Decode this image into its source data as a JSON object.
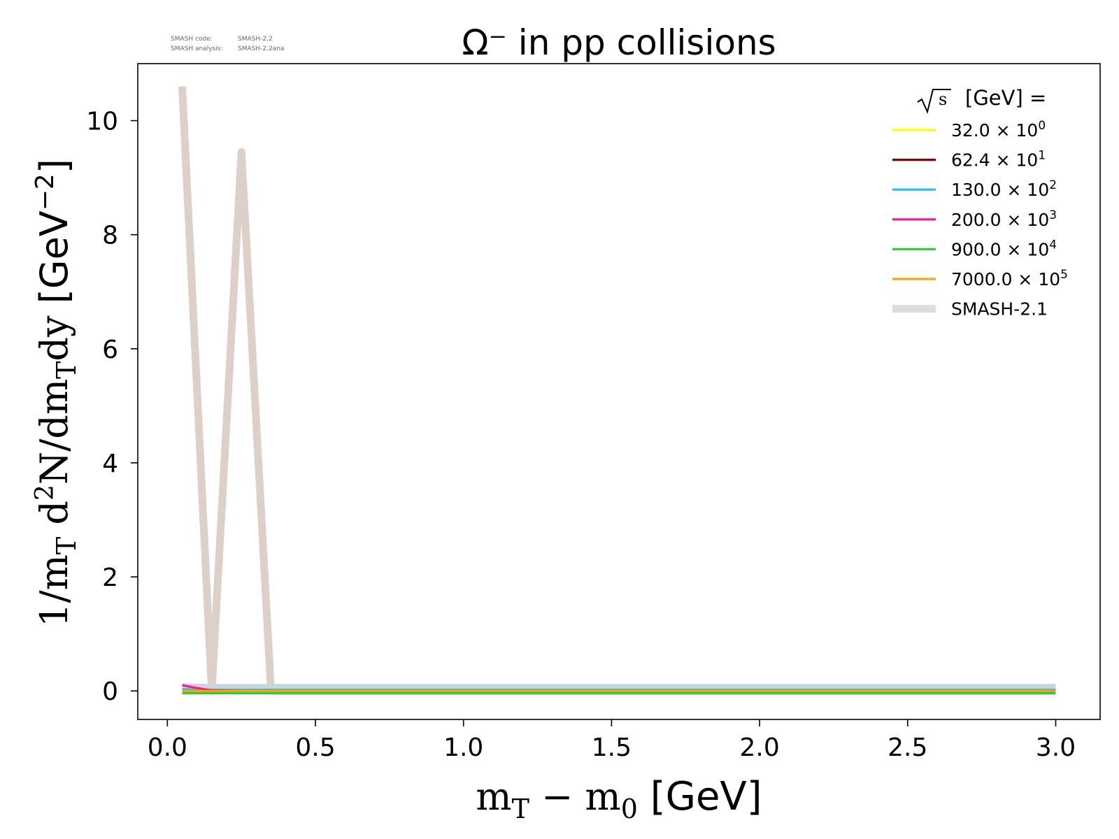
{
  "meta": {
    "code_label": "SMASH code:",
    "code_value": "SMASH-2.2",
    "analysis_label": "SMASH analysis:",
    "analysis_value": "SMASH-2.2ana"
  },
  "chart_data": {
    "type": "line",
    "title": "Ω⁻ in pp collisions",
    "xlabel": "m_T − m_0 [GeV]",
    "ylabel": "1/m_T d²N/dm_T dy [GeV⁻²]",
    "xlim": [
      -0.1,
      3.15
    ],
    "ylim": [
      -0.5,
      11.0
    ],
    "xticks": [
      0.0,
      0.5,
      1.0,
      1.5,
      2.0,
      2.5,
      3.0
    ],
    "xtick_labels": [
      "0.0",
      "0.5",
      "1.0",
      "1.5",
      "2.0",
      "2.5",
      "3.0"
    ],
    "yticks": [
      0,
      2,
      4,
      6,
      8,
      10
    ],
    "ytick_labels": [
      "0",
      "2",
      "4",
      "6",
      "8",
      "10"
    ],
    "grid": false,
    "legend": {
      "placement": "top-right",
      "title": "[GeV] ="
    },
    "reference_series": {
      "name": "SMASH-2.1",
      "color": "#dcd0c8",
      "x": [
        0.05,
        0.15,
        0.25,
        0.35,
        0.45,
        3.0
      ],
      "y": [
        10.6,
        0.0,
        9.45,
        0.0,
        0.0,
        0.0
      ]
    },
    "series": [
      {
        "name": "32.0",
        "exponent": "0",
        "color": "#ffff00",
        "x": [
          0.05,
          0.15,
          0.25,
          3.0
        ],
        "y": [
          0.0,
          0.0,
          0.0,
          0.0
        ]
      },
      {
        "name": "62.4",
        "exponent": "1",
        "color": "#8b0000",
        "x": [
          0.05,
          0.15,
          0.25,
          3.0
        ],
        "y": [
          0.0,
          0.0,
          0.0,
          0.0
        ]
      },
      {
        "name": "130.0",
        "exponent": "2",
        "color": "#1ebeff",
        "x": [
          0.05,
          0.15,
          0.25,
          3.0
        ],
        "y": [
          0.03,
          0.02,
          0.02,
          0.02
        ]
      },
      {
        "name": "200.0",
        "exponent": "3",
        "color": "#ff1493",
        "x": [
          0.05,
          0.1,
          0.15,
          0.25,
          3.0
        ],
        "y": [
          0.1,
          0.05,
          0.01,
          0.0,
          0.0
        ]
      },
      {
        "name": "900.0",
        "exponent": "4",
        "color": "#32cd32",
        "x": [
          0.05,
          0.15,
          0.25,
          3.0
        ],
        "y": [
          -0.04,
          -0.04,
          -0.04,
          -0.04
        ]
      },
      {
        "name": "7000.0",
        "exponent": "5",
        "color": "#ffa500",
        "x": [
          0.05,
          0.15,
          0.25,
          3.0
        ],
        "y": [
          0.0,
          0.0,
          0.0,
          0.0
        ]
      }
    ]
  }
}
